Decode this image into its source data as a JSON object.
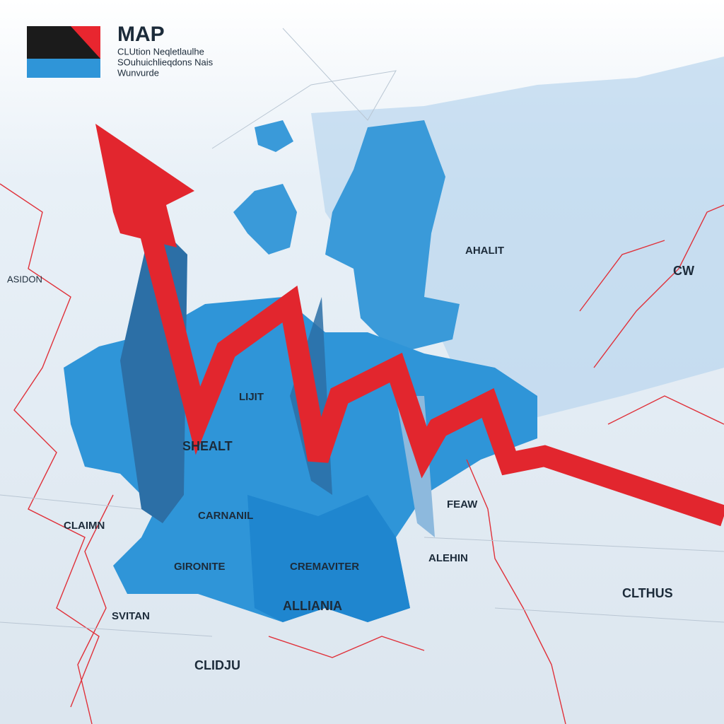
{
  "header": {
    "title": "MAP",
    "subtitle_lines": [
      "CLUtion Neqletlaulhe",
      "SOuhuichlieqdons Nais",
      "Wunvurde"
    ]
  },
  "labels": [
    "ALLIANIA",
    "CREMAVITER",
    "GIRONITE",
    "CARNANIL",
    "SHEALT",
    "LIJIT",
    "CLIDJU",
    "SVITAN",
    "CLAIMN",
    "ALEHIN",
    "FEAW",
    "CLTHUS",
    "AHALIT",
    "CW",
    "ASIDON"
  ]
}
